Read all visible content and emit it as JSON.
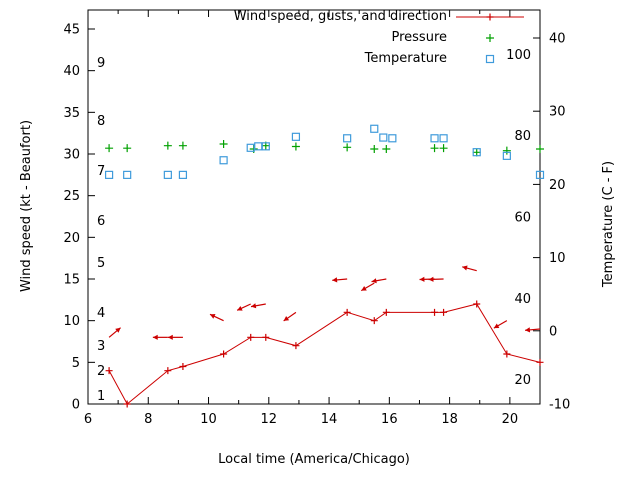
{
  "legend": {
    "wind": {
      "label": "Wind speed, gusts, and direction",
      "marker": "red-line-with-plus"
    },
    "pressure": {
      "label": "Pressure",
      "marker": "green-plus"
    },
    "temperature": {
      "label": "Temperature",
      "marker": "blue-open-square"
    }
  },
  "axes": {
    "x_label": "Local time (America/Chicago)",
    "y_left_label": "Wind speed (kt - Beaufort)",
    "y_right_label": "Temperature (C - F)",
    "x_range": [
      6,
      21
    ],
    "x_major_ticks": [
      6,
      8,
      10,
      12,
      14,
      16,
      18,
      20
    ],
    "x_minor_ticks": [
      7,
      9,
      11,
      13,
      15,
      17,
      19,
      21
    ],
    "y_left_range": [
      0,
      45
    ],
    "y_left_ticks": [
      0,
      5,
      10,
      15,
      20,
      25,
      30,
      35,
      40,
      45
    ],
    "y_right_range": [
      -10,
      40
    ],
    "y_right_ticks": [
      -10,
      0,
      10,
      20,
      30,
      40
    ],
    "beaufort_scale_labels": [
      {
        "label": "1",
        "kt": 1
      },
      {
        "label": "2",
        "kt": 4
      },
      {
        "label": "3",
        "kt": 7
      },
      {
        "label": "4",
        "kt": 11
      },
      {
        "label": "5",
        "kt": 17
      },
      {
        "label": "6",
        "kt": 22
      },
      {
        "label": "7",
        "kt": 28
      },
      {
        "label": "8",
        "kt": 34
      },
      {
        "label": "9",
        "kt": 41
      }
    ],
    "fahrenheit_scale_labels": [
      {
        "label": "20",
        "c": -6.67
      },
      {
        "label": "40",
        "c": 4.44
      },
      {
        "label": "60",
        "c": 15.56
      },
      {
        "label": "80",
        "c": 26.67
      },
      {
        "label": "100",
        "c": 37.78
      }
    ]
  },
  "chart_data": {
    "type": "line",
    "title": "",
    "x_axis": "Local time (America/Chicago), hours 6 to 21",
    "grid": false,
    "legend_position": "top-center-inside",
    "series": [
      {
        "id": "wind_speed",
        "name": "Wind speed",
        "axis": "left",
        "units": "kt",
        "style": "line-with-plus-markers",
        "color": "#cc0000",
        "points": [
          [
            6.7,
            4
          ],
          [
            7.3,
            0
          ],
          [
            8.65,
            4
          ],
          [
            9.15,
            4.5
          ],
          [
            10.5,
            6
          ],
          [
            11.4,
            8
          ],
          [
            11.9,
            8
          ],
          [
            12.9,
            7
          ],
          [
            14.6,
            11
          ],
          [
            15.5,
            10
          ],
          [
            15.9,
            11
          ],
          [
            17.5,
            11
          ],
          [
            17.8,
            11
          ],
          [
            18.9,
            12
          ],
          [
            19.9,
            6
          ],
          [
            21,
            5
          ]
        ]
      },
      {
        "id": "wind_gusts",
        "name": "Wind gusts and direction",
        "axis": "left",
        "units": "kt",
        "style": "direction-arrows",
        "direction_convention": "degrees, 0 = east/right, counterclockwise positive",
        "color": "#cc0000",
        "points": [
          [
            6.7,
            8,
            40
          ],
          [
            8.65,
            8,
            180
          ],
          [
            9.15,
            8,
            180
          ],
          [
            10.5,
            10,
            155
          ],
          [
            11.4,
            12,
            205
          ],
          [
            11.9,
            12,
            190
          ],
          [
            12.9,
            11,
            215
          ],
          [
            14.6,
            15,
            185
          ],
          [
            15.5,
            14.5,
            210
          ],
          [
            15.9,
            15,
            190
          ],
          [
            17.5,
            15,
            182
          ],
          [
            17.8,
            15,
            182
          ],
          [
            18.9,
            16,
            165
          ],
          [
            19.9,
            10,
            210
          ],
          [
            21,
            9,
            185
          ]
        ]
      },
      {
        "id": "pressure",
        "name": "Pressure",
        "axis": "left",
        "units": "inHg (plotted against left axis values)",
        "style": "plus-markers",
        "color": "#00a000",
        "points": [
          [
            6.7,
            30.7
          ],
          [
            7.3,
            30.7
          ],
          [
            8.65,
            31.0
          ],
          [
            9.15,
            31.0
          ],
          [
            10.5,
            31.2
          ],
          [
            11.5,
            30.6
          ],
          [
            11.9,
            31.0
          ],
          [
            12.9,
            30.9
          ],
          [
            14.6,
            30.8
          ],
          [
            15.5,
            30.6
          ],
          [
            15.9,
            30.6
          ],
          [
            17.5,
            30.7
          ],
          [
            17.8,
            30.7
          ],
          [
            18.9,
            30.2
          ],
          [
            19.9,
            30.4
          ],
          [
            21,
            30.6
          ]
        ]
      },
      {
        "id": "temperature",
        "name": "Temperature",
        "axis": "right",
        "units": "C",
        "style": "open-square-markers",
        "color": "#3f9bdb",
        "points": [
          [
            6.7,
            21.3
          ],
          [
            7.3,
            21.3
          ],
          [
            8.65,
            21.3
          ],
          [
            9.15,
            21.3
          ],
          [
            10.5,
            23.3
          ],
          [
            11.4,
            25.0
          ],
          [
            11.65,
            25.2
          ],
          [
            11.9,
            25.2
          ],
          [
            12.9,
            26.5
          ],
          [
            14.6,
            26.3
          ],
          [
            15.5,
            27.6
          ],
          [
            15.8,
            26.4
          ],
          [
            16.1,
            26.3
          ],
          [
            17.5,
            26.3
          ],
          [
            17.8,
            26.3
          ],
          [
            18.9,
            24.4
          ],
          [
            19.9,
            23.9
          ],
          [
            21,
            21.3
          ]
        ]
      }
    ]
  }
}
